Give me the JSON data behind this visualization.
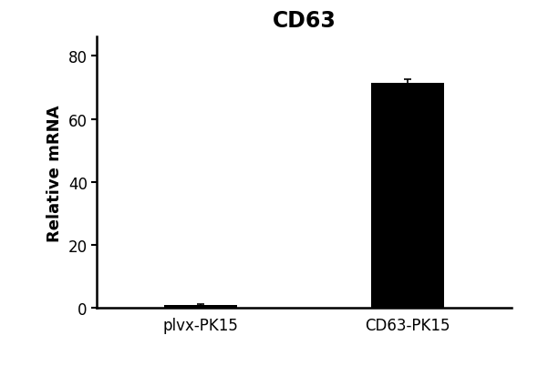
{
  "title": "CD63",
  "title_fontsize": 17,
  "title_fontweight": "bold",
  "ylabel": "Relative mRNA",
  "ylabel_fontsize": 13,
  "ylabel_fontweight": "bold",
  "categories": [
    "plvx-PK15",
    "CD63-PK15"
  ],
  "values": [
    1.0,
    71.5
  ],
  "errors": [
    0.25,
    1.0
  ],
  "bar_color": "#000000",
  "bar_width": 0.35,
  "ylim": [
    0,
    86
  ],
  "yticks": [
    0,
    20,
    40,
    60,
    80
  ],
  "tick_fontsize": 12,
  "xlabel_fontsize": 12,
  "background_color": "#ffffff",
  "spine_linewidth": 1.8,
  "capsize": 3,
  "error_linewidth": 1.2,
  "error_color": "#000000",
  "xlim": [
    -0.5,
    1.5
  ]
}
